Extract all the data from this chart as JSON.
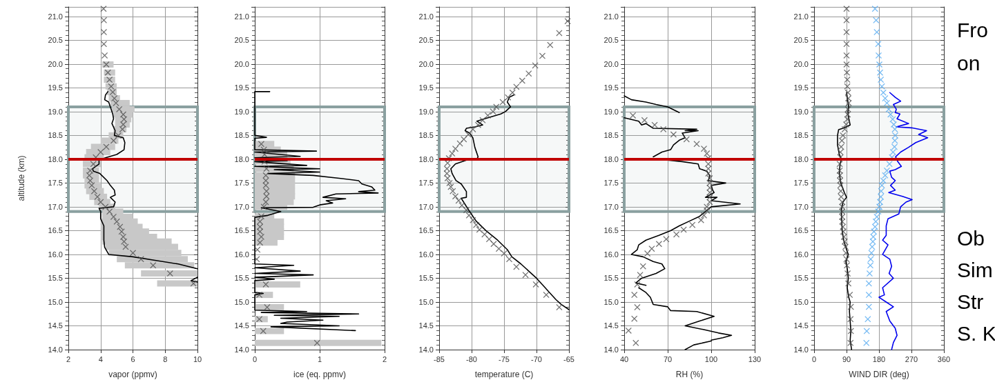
{
  "chart_data": [
    {
      "type": "line",
      "xlabel": "vapor (ppmv)",
      "ylabel": "altitude (km)",
      "xlim": [
        2,
        10
      ],
      "xticks": [
        2,
        4,
        6,
        8,
        10
      ],
      "ylim": [
        14,
        21.2
      ],
      "yticks": [
        {
          "value": 14,
          "label": "14.0"
        },
        {
          "value": 14.5,
          "label": "14.5"
        },
        {
          "value": 15,
          "label": "15.0"
        },
        {
          "value": 15.5,
          "label": "15.5"
        },
        {
          "value": 16,
          "label": "16.0"
        },
        {
          "value": 16.5,
          "label": "16.5"
        },
        {
          "value": 17,
          "label": "17.0"
        },
        {
          "value": 17.5,
          "label": "17.5"
        },
        {
          "value": 18,
          "label": "18.0"
        },
        {
          "value": 18.5,
          "label": "18.5"
        },
        {
          "value": 19,
          "label": "19.0"
        },
        {
          "value": 19.5,
          "label": "19.5"
        },
        {
          "value": 20,
          "label": "20.0"
        },
        {
          "value": 20.5,
          "label": "20.5"
        },
        {
          "value": 21,
          "label": "21.0"
        }
      ],
      "grid": true,
      "bands": [
        {
          "axis": "y",
          "from": 16.9,
          "to": 19.1,
          "color": "#8aa0a0"
        }
      ],
      "ref_lines": [
        {
          "axis": "y",
          "value": 18,
          "color": "#c00000"
        }
      ],
      "series": [
        {
          "type": "scatter",
          "marker": "cross",
          "color": "#505050",
          "x": [
            4.18,
            4.2,
            4.2,
            4.2,
            4.25,
            4.35,
            4.45,
            4.55,
            4.65,
            4.75,
            4.85,
            4.95,
            5.15,
            5.4,
            5.45,
            5.4,
            5.35,
            5.1,
            4.8,
            4.35,
            4.0,
            3.7,
            3.55,
            3.35,
            3.3,
            3.35,
            3.45,
            3.6,
            3.8,
            4.0,
            4.3,
            4.55,
            4.8,
            5.0,
            5.2,
            5.3,
            5.4,
            5.45,
            5.55,
            6.0,
            6.5,
            7.25,
            8.3,
            9.75
          ],
          "values": [
            21.16,
            20.92,
            20.67,
            20.42,
            20.18,
            19.99,
            19.82,
            19.67,
            19.53,
            19.41,
            19.28,
            19.18,
            19.05,
            18.94,
            18.84,
            18.73,
            18.63,
            18.5,
            18.39,
            18.26,
            18.15,
            18.04,
            17.9,
            17.76,
            17.66,
            17.55,
            17.45,
            17.33,
            17.21,
            17.1,
            17.0,
            16.9,
            16.79,
            16.69,
            16.58,
            16.48,
            16.37,
            16.27,
            16.16,
            16.03,
            15.9,
            15.77,
            15.6,
            15.39
          ],
          "xerrors": [
            null,
            null,
            null,
            null,
            null,
            [
              4.1,
              4.8
            ],
            [
              4.2,
              4.9
            ],
            [
              4.2,
              4.9
            ],
            [
              4.3,
              5.0
            ],
            [
              4.4,
              5.0
            ],
            [
              4.5,
              5.2
            ],
            [
              4.6,
              5.8
            ],
            [
              4.7,
              6.1
            ],
            [
              4.8,
              6.0
            ],
            [
              4.9,
              5.9
            ],
            [
              4.9,
              5.8
            ],
            [
              4.8,
              5.6
            ],
            [
              4.5,
              5.4
            ],
            [
              4.0,
              5.1
            ],
            [
              3.4,
              4.9
            ],
            [
              3.1,
              4.6
            ],
            [
              3.0,
              4.2
            ],
            [
              2.9,
              4.0
            ],
            [
              2.9,
              3.9
            ],
            [
              2.9,
              3.9
            ],
            [
              3.0,
              3.9
            ],
            [
              3.0,
              4.0
            ],
            [
              3.1,
              4.2
            ],
            [
              3.3,
              4.4
            ],
            [
              3.6,
              4.6
            ],
            [
              3.9,
              4.9
            ],
            [
              4.1,
              5.4
            ],
            [
              4.1,
              6.0
            ],
            [
              4.0,
              6.3
            ],
            [
              4.0,
              6.6
            ],
            [
              4.0,
              7.0
            ],
            [
              4.0,
              7.5
            ],
            [
              4.1,
              8.4
            ],
            [
              4.3,
              8.8
            ],
            [
              4.5,
              9.0
            ],
            [
              5.0,
              9.4
            ],
            [
              5.5,
              9.8
            ],
            [
              6.5,
              10
            ],
            [
              7.5,
              10
            ]
          ]
        },
        {
          "color": "#000000",
          "x": [
            4.45,
            4.3,
            4.25,
            4.5,
            4.6,
            4.75,
            4.8,
            4.7,
            4.9,
            4.85,
            5.4,
            5.5,
            5.45,
            5.0,
            4.3,
            3.9,
            3.9,
            3.5,
            3.55,
            3.95,
            4.4,
            4.6,
            4.85,
            4.9,
            4.6,
            4.9,
            4.8,
            3.9,
            4.0,
            4.0,
            4.2,
            4.2,
            4.2,
            4.25,
            4.5,
            6.0,
            7.5,
            8.8,
            10.0,
            null,
            10,
            9.6,
            10
          ],
          "values": [
            19.42,
            19.35,
            19.25,
            19.2,
            19.1,
            18.95,
            18.85,
            18.75,
            18.6,
            18.5,
            18.45,
            18.35,
            18.2,
            18.1,
            18.03,
            17.98,
            17.9,
            17.8,
            17.75,
            17.7,
            17.55,
            17.45,
            17.35,
            17.25,
            17.2,
            17.1,
            17.0,
            16.97,
            16.9,
            16.75,
            16.6,
            16.45,
            16.3,
            16.15,
            16.0,
            15.95,
            15.87,
            15.8,
            15.7,
            null,
            15.52,
            15.45,
            15.42
          ]
        }
      ]
    },
    {
      "type": "line",
      "xlabel": "ice (eq. ppmv)",
      "xlim": [
        0,
        2
      ],
      "xticks": [
        0,
        1,
        2
      ],
      "ylim": [
        14,
        21.2
      ],
      "yticks": [
        {
          "value": 14,
          "label": "14.0"
        },
        {
          "value": 14.5,
          "label": "14.5"
        },
        {
          "value": 15,
          "label": "15.0"
        },
        {
          "value": 15.5,
          "label": "15.5"
        },
        {
          "value": 16,
          "label": "16.0"
        },
        {
          "value": 16.5,
          "label": "16.5"
        },
        {
          "value": 17,
          "label": "17.0"
        },
        {
          "value": 17.5,
          "label": "17.5"
        },
        {
          "value": 18,
          "label": "18.0"
        },
        {
          "value": 18.5,
          "label": "18.5"
        },
        {
          "value": 19,
          "label": "19.0"
        },
        {
          "value": 19.5,
          "label": "19.5"
        },
        {
          "value": 20,
          "label": "20.0"
        },
        {
          "value": 20.5,
          "label": "20.5"
        },
        {
          "value": 21,
          "label": "21.0"
        }
      ],
      "grid": true,
      "bands": [
        {
          "axis": "y",
          "from": 16.9,
          "to": 19.1,
          "color": "#8aa0a0"
        }
      ],
      "ref_lines": [
        {
          "axis": "y",
          "value": 18,
          "color": "#c00000"
        }
      ],
      "series": [
        {
          "type": "scatter",
          "marker": "cross",
          "color": "#505050",
          "x": [
            0.1,
            0.14,
            0.15,
            0.15,
            0.18,
            0.17,
            0.17,
            0.17,
            0.18,
            0.18,
            0.17,
            0.14,
            0.1,
            0.08,
            0.08,
            0.08,
            0.1,
            0.08,
            0.04,
            0.03,
            0.17,
            0.07,
            0.19,
            0.07,
            0.13,
            0.96
          ],
          "values": [
            18.32,
            18.2,
            18.1,
            17.95,
            17.8,
            17.66,
            17.55,
            17.45,
            17.33,
            17.22,
            17.1,
            17.0,
            16.8,
            16.69,
            16.58,
            16.48,
            16.37,
            16.25,
            16.1,
            15.9,
            15.37,
            15.15,
            14.89,
            14.64,
            14.39,
            14.14
          ],
          "xerrors": [
            [
              0,
              0.3
            ],
            [
              0,
              0.4
            ],
            [
              0,
              0.5
            ],
            [
              0,
              0.55
            ],
            [
              0,
              0.6
            ],
            [
              0,
              0.62
            ],
            [
              0,
              0.62
            ],
            [
              0,
              0.62
            ],
            [
              0,
              0.62
            ],
            [
              0,
              0.62
            ],
            [
              0,
              0.6
            ],
            [
              0,
              0.5
            ],
            [
              0,
              0.3
            ],
            [
              0,
              0.45
            ],
            [
              0,
              0.45
            ],
            [
              0,
              0.45
            ],
            [
              0,
              0.45
            ],
            [
              0,
              0.35
            ],
            null,
            null,
            [
              0,
              0.7
            ],
            [
              0,
              0.28
            ],
            [
              0,
              0.45
            ],
            [
              0,
              0.2
            ],
            [
              0,
              0.45
            ],
            [
              0,
              1.95
            ]
          ]
        },
        {
          "color": "#000000",
          "x": [
            0.23,
            0,
            0,
            0.18,
            0,
            0,
            0.95,
            0,
            0.7,
            0,
            0.5,
            0,
            0.8,
            0,
            1.0,
            0.3,
            1.0,
            0.2,
            0.9,
            1.3,
            1.6,
            1.65,
            1.8,
            1.85,
            1.6,
            1.9,
            1.25,
            1.05,
            1.4,
            1.1,
            1.2,
            1.0,
            0.9,
            0.1,
            0.4,
            0.2,
            0,
            0,
            0.6,
            0,
            0.7,
            0,
            0.9,
            0,
            0.3,
            0,
            0,
            0.13,
            0,
            0,
            0.8,
            0.1,
            1.6,
            0.3,
            1.3,
            0.4,
            1.05,
            0.5,
            0.4,
            1.3,
            0.25,
            1.55
          ],
          "values": [
            19.42,
            19.42,
            18.5,
            18.46,
            18.44,
            18.2,
            18.17,
            18.15,
            18.06,
            18.03,
            17.97,
            17.95,
            17.87,
            17.85,
            17.8,
            17.78,
            17.73,
            17.7,
            17.66,
            17.6,
            17.55,
            17.48,
            17.42,
            17.35,
            17.32,
            17.29,
            17.27,
            17.2,
            17.17,
            17.13,
            17.08,
            17.04,
            16.99,
            16.98,
            16.9,
            16.82,
            16.78,
            15.8,
            15.77,
            15.72,
            15.65,
            15.6,
            15.57,
            15.52,
            15.48,
            15.45,
            15.2,
            15.18,
            15.15,
            14.83,
            14.8,
            14.78,
            14.75,
            14.72,
            14.7,
            14.66,
            14.62,
            14.58,
            14.55,
            14.5,
            14.48,
            14.4
          ]
        }
      ]
    },
    {
      "type": "line",
      "xlabel": "temperature (C)",
      "xlim": [
        -85,
        -65
      ],
      "xticks": [
        -85,
        -80,
        -75,
        -70,
        -65
      ],
      "ylim": [
        14,
        21.2
      ],
      "yticks": [
        {
          "value": 14,
          "label": "14.0"
        },
        {
          "value": 14.5,
          "label": "14.5"
        },
        {
          "value": 15,
          "label": "15.0"
        },
        {
          "value": 15.5,
          "label": "15.5"
        },
        {
          "value": 16,
          "label": "16.0"
        },
        {
          "value": 16.5,
          "label": "16.5"
        },
        {
          "value": 17,
          "label": "17.0"
        },
        {
          "value": 17.5,
          "label": "17.5"
        },
        {
          "value": 18,
          "label": "18.0"
        },
        {
          "value": 18.5,
          "label": "18.5"
        },
        {
          "value": 19,
          "label": "19.0"
        },
        {
          "value": 19.5,
          "label": "19.5"
        },
        {
          "value": 20,
          "label": "20.0"
        },
        {
          "value": 20.5,
          "label": "20.5"
        },
        {
          "value": 21,
          "label": "21.0"
        }
      ],
      "grid": true,
      "bands": [
        {
          "axis": "y",
          "from": 16.9,
          "to": 19.1,
          "color": "#8aa0a0"
        }
      ],
      "ref_lines": [
        {
          "axis": "y",
          "value": 18,
          "color": "#c00000"
        }
      ],
      "series": [
        {
          "type": "scatter",
          "marker": "cross",
          "color": "#505050",
          "x": [
            -65.2,
            -66.5,
            -67.9,
            -69.1,
            -70.2,
            -71.2,
            -72.2,
            -73.1,
            -73.7,
            -74.4,
            -75.2,
            -76.2,
            -76.7,
            -77.5,
            -78.3,
            -79.0,
            -79.8,
            -80.5,
            -81.2,
            -81.8,
            -82.5,
            -83.0,
            -83.5,
            -83.7,
            -83.8,
            -83.8,
            -83.7,
            -83.4,
            -83.2,
            -82.9,
            -82.5,
            -82.0,
            -81.5,
            -80.8,
            -80.4,
            -79.8,
            -79.3,
            -78.8,
            -78.0,
            -77.3,
            -76.6,
            -75.8,
            -75.0,
            -74.2,
            -73.1,
            -71.7,
            -70.1,
            -68.5,
            -66.5
          ],
          "values": [
            20.9,
            20.65,
            20.4,
            20.17,
            19.97,
            19.8,
            19.65,
            19.52,
            19.4,
            19.3,
            19.2,
            19.1,
            19.0,
            18.92,
            18.82,
            18.72,
            18.63,
            18.52,
            18.42,
            18.33,
            18.22,
            18.12,
            18.02,
            17.92,
            17.8,
            17.7,
            17.6,
            17.5,
            17.42,
            17.33,
            17.22,
            17.13,
            17.03,
            16.93,
            16.82,
            16.72,
            16.62,
            16.52,
            16.42,
            16.32,
            16.22,
            16.12,
            16.02,
            15.9,
            15.74,
            15.57,
            15.37,
            15.15,
            14.89
          ]
        },
        {
          "color": "#000000",
          "x": [
            -73.5,
            -74.2,
            -74.5,
            -74.0,
            -74.8,
            -75.5,
            -78,
            -79.2,
            -78.3,
            -79.5,
            -80.8,
            -81,
            -80.3,
            -79.8,
            -79.5,
            -79.0,
            -79.2,
            -80.8,
            -82.5,
            -83.2,
            -83.0,
            -82.4,
            -81.6,
            -81.2,
            -80.8,
            -80.8,
            -81.6,
            -81.0,
            -80.3,
            -79.3,
            -77.8,
            -76.0,
            -74.5,
            -73.8,
            -72.4,
            -71.2,
            -70.0,
            -69.0,
            -68.0,
            -67.0,
            -66.2,
            -65.0
          ],
          "values": [
            19.35,
            19.3,
            19.2,
            19.1,
            19.0,
            18.95,
            18.85,
            18.8,
            18.72,
            18.68,
            18.65,
            18.6,
            18.55,
            18.45,
            18.25,
            18.05,
            18.0,
            17.98,
            17.9,
            17.8,
            17.7,
            17.55,
            17.48,
            17.4,
            17.32,
            17.2,
            17.18,
            17.05,
            16.9,
            16.7,
            16.5,
            16.3,
            16.1,
            15.95,
            15.8,
            15.65,
            15.5,
            15.35,
            15.2,
            15.05,
            14.95,
            14.84
          ]
        }
      ]
    },
    {
      "type": "line",
      "xlabel": "RH (%)",
      "xlim": [
        40,
        130
      ],
      "xticks": [
        40,
        70,
        100,
        130
      ],
      "ylim": [
        14,
        21.2
      ],
      "yticks": [
        {
          "value": 14,
          "label": "14.0"
        },
        {
          "value": 14.5,
          "label": "14.5"
        },
        {
          "value": 15,
          "label": "15.0"
        },
        {
          "value": 15.5,
          "label": "15.5"
        },
        {
          "value": 16,
          "label": "16.0"
        },
        {
          "value": 16.5,
          "label": "16.5"
        },
        {
          "value": 17,
          "label": "17.0"
        },
        {
          "value": 17.5,
          "label": "17.5"
        },
        {
          "value": 18,
          "label": "18.0"
        },
        {
          "value": 18.5,
          "label": "18.5"
        },
        {
          "value": 19,
          "label": "19.0"
        },
        {
          "value": 19.5,
          "label": "19.5"
        },
        {
          "value": 20,
          "label": "20.0"
        },
        {
          "value": 20.5,
          "label": "20.5"
        },
        {
          "value": 21,
          "label": "21.0"
        }
      ],
      "grid": true,
      "bands": [
        {
          "axis": "y",
          "from": 16.9,
          "to": 19.1,
          "color": "#8aa0a0"
        }
      ],
      "ref_lines": [
        {
          "axis": "y",
          "value": 18,
          "color": "#c00000"
        }
      ],
      "series": [
        {
          "type": "scatter",
          "marker": "cross",
          "color": "#505050",
          "x": [
            46,
            54,
            61,
            67,
            74,
            83,
            90,
            95,
            97,
            98,
            98,
            98,
            98,
            99,
            99,
            99,
            99,
            99,
            99,
            97,
            97,
            95,
            93,
            87,
            81,
            76,
            69,
            64,
            59,
            56,
            53,
            51,
            49,
            47,
            49,
            47,
            43,
            48
          ],
          "values": [
            18.92,
            18.82,
            18.72,
            18.63,
            18.52,
            18.42,
            18.32,
            18.22,
            18.12,
            18.02,
            17.9,
            17.8,
            17.7,
            17.6,
            17.5,
            17.4,
            17.3,
            17.2,
            17.1,
            17.0,
            16.92,
            16.82,
            16.72,
            16.62,
            16.52,
            16.42,
            16.32,
            16.22,
            16.12,
            16.02,
            15.75,
            15.57,
            15.37,
            15.15,
            14.89,
            14.65,
            14.4,
            14.14
          ]
        },
        {
          "color": "#000000",
          "x": [
            40,
            45,
            55,
            62,
            70,
            78,
            null,
            40,
            50,
            52,
            55,
            60,
            90,
            82,
            91,
            80,
            82,
            78,
            74,
            72,
            66,
            60,
            null,
            70,
            80,
            91,
            92,
            97,
            99,
            98,
            110,
            100,
            101,
            102,
            96,
            104,
            100,
            120,
            100,
            96,
            92,
            85,
            78,
            72,
            64,
            55,
            50,
            49,
            45,
            53,
            60,
            66,
            68,
            62,
            52,
            48,
            55,
            null,
            50,
            55,
            58,
            60,
            70,
            72,
            90,
            102,
            92,
            82,
            95,
            105,
            114,
            108,
            100,
            null,
            100,
            88,
            82
          ],
          "values": [
            19.33,
            19.25,
            19.2,
            19.15,
            19.1,
            18.98,
            null,
            18.87,
            18.8,
            18.72,
            18.75,
            18.65,
            18.63,
            18.6,
            18.6,
            18.55,
            18.45,
            18.4,
            18.3,
            18.2,
            18.15,
            18.05,
            null,
            17.98,
            17.95,
            17.9,
            17.8,
            17.75,
            17.65,
            17.55,
            17.5,
            17.45,
            17.35,
            17.3,
            17.2,
            17.2,
            17.13,
            17.06,
            17.0,
            16.9,
            16.8,
            16.7,
            16.6,
            16.5,
            16.4,
            16.3,
            16.2,
            16.1,
            16.0,
            15.95,
            15.85,
            15.8,
            15.7,
            15.6,
            15.5,
            15.4,
            15.35,
            null,
            15.3,
            15.2,
            15.1,
            14.95,
            14.9,
            14.82,
            14.8,
            14.7,
            14.6,
            14.5,
            14.42,
            14.35,
            14.3,
            14.25,
            14.2,
            null,
            14.18,
            14.1,
            14.0
          ]
        }
      ]
    },
    {
      "type": "line",
      "xlabel": "WIND DIR (deg)",
      "xlim": [
        0,
        360
      ],
      "xticks": [
        0,
        90,
        180,
        270,
        360
      ],
      "ylim": [
        14,
        21.2
      ],
      "yticks": [
        {
          "value": 14,
          "label": "14.0"
        },
        {
          "value": 14.5,
          "label": "14.5"
        },
        {
          "value": 15,
          "label": "15.0"
        },
        {
          "value": 15.5,
          "label": "15.5"
        },
        {
          "value": 16,
          "label": "16.0"
        },
        {
          "value": 16.5,
          "label": "16.5"
        },
        {
          "value": 17,
          "label": "17.0"
        },
        {
          "value": 17.5,
          "label": "17.5"
        },
        {
          "value": 18,
          "label": "18.0"
        },
        {
          "value": 18.5,
          "label": "18.5"
        },
        {
          "value": 19,
          "label": "19.0"
        },
        {
          "value": 19.5,
          "label": "19.5"
        },
        {
          "value": 20,
          "label": "20.0"
        },
        {
          "value": 20.5,
          "label": "20.5"
        },
        {
          "value": 21,
          "label": "21.0"
        }
      ],
      "grid": true,
      "bands": [
        {
          "axis": "y",
          "from": 16.9,
          "to": 19.1,
          "color": "#8aa0a0"
        }
      ],
      "ref_lines": [
        {
          "axis": "y",
          "value": 18,
          "color": "#c00000"
        }
      ],
      "annotations": [
        "Fro",
        "on",
        "Ob",
        "Sim",
        "Str",
        "S. K"
      ],
      "series": [
        {
          "type": "scatter",
          "marker": "cross",
          "color": "#505050",
          "x": [
            90,
            90,
            90,
            90,
            90,
            90,
            91,
            92,
            92,
            94,
            95,
            96,
            94,
            93,
            92,
            89,
            85,
            80,
            77,
            75,
            73,
            73,
            71,
            71,
            72,
            72,
            73,
            74,
            75,
            78,
            78,
            78,
            78,
            78,
            80,
            81,
            83,
            85,
            87,
            88,
            90,
            91,
            93,
            95,
            99,
            102,
            101,
            102,
            101
          ],
          "values": [
            21.16,
            20.92,
            20.67,
            20.42,
            20.18,
            19.99,
            19.82,
            19.67,
            19.53,
            19.4,
            19.28,
            19.18,
            19.05,
            18.94,
            18.84,
            18.73,
            18.63,
            18.5,
            18.39,
            18.26,
            18.15,
            18.04,
            17.9,
            17.76,
            17.66,
            17.55,
            17.45,
            17.33,
            17.21,
            17.1,
            17.0,
            16.9,
            16.79,
            16.69,
            16.58,
            16.48,
            16.37,
            16.27,
            16.16,
            16.03,
            15.9,
            15.77,
            15.6,
            15.39,
            15.15,
            14.9,
            14.64,
            14.39,
            14.14
          ]
        },
        {
          "color": "#000000",
          "x": [
            90,
            92,
            96,
            94,
            95,
            100,
            80,
            68,
            65,
            65,
            70,
            76,
            72,
            70,
            74,
            84,
            90,
            80,
            76,
            76,
            78,
            82,
            90,
            95,
            88,
            92,
            95,
            92,
            96,
            100,
            98,
            100,
            102,
            100,
            104
          ],
          "values": [
            19.4,
            19.3,
            19.1,
            19.0,
            18.9,
            18.72,
            18.65,
            18.62,
            18.5,
            18.3,
            18.1,
            18.0,
            17.9,
            17.7,
            17.5,
            17.3,
            17.2,
            17.1,
            16.95,
            16.8,
            16.5,
            16.3,
            16.1,
            16.0,
            15.85,
            15.7,
            15.5,
            15.3,
            15.1,
            15.0,
            14.8,
            14.6,
            14.4,
            14.2,
            14.0
          ]
        },
        {
          "type": "scatter",
          "marker": "cross",
          "color": "#55aaf0",
          "x": [
            169,
            172,
            174,
            178,
            179,
            181,
            183,
            185,
            188,
            192,
            197,
            202,
            207,
            212,
            218,
            221,
            224,
            225,
            224,
            223,
            219,
            216,
            209,
            202,
            197,
            192,
            188,
            186,
            185,
            183,
            181,
            178,
            174,
            171,
            169,
            166,
            164,
            163,
            161,
            159,
            157,
            156,
            154,
            152,
            152,
            152,
            149,
            146,
            145
          ],
          "values": [
            21.16,
            20.92,
            20.67,
            20.42,
            20.18,
            19.99,
            19.82,
            19.67,
            19.53,
            19.4,
            19.28,
            19.18,
            19.05,
            18.94,
            18.84,
            18.73,
            18.63,
            18.5,
            18.39,
            18.26,
            18.15,
            18.04,
            17.9,
            17.76,
            17.66,
            17.55,
            17.45,
            17.33,
            17.21,
            17.1,
            17.0,
            16.9,
            16.79,
            16.69,
            16.58,
            16.48,
            16.37,
            16.27,
            16.16,
            16.03,
            15.9,
            15.77,
            15.6,
            15.39,
            15.15,
            14.9,
            14.64,
            14.39,
            14.14
          ]
        },
        {
          "color": "#0000ee",
          "x": [
            210,
            225,
            240,
            220,
            228,
            225,
            238,
            230,
            262,
            228,
            270,
            312,
            290,
            315,
            282,
            262,
            240,
            226,
            232,
            242,
            225,
            210,
            215,
            225,
            212,
            225,
            207,
            245,
            272,
            255,
            240,
            235,
            205,
            200,
            200,
            190,
            205,
            190,
            210,
            215,
            208,
            220,
            190,
            195,
            180,
            200,
            220,
            200,
            210,
            225,
            230,
            220,
            215
          ],
          "values": [
            19.4,
            19.3,
            19.22,
            19.15,
            19.05,
            18.98,
            18.95,
            18.85,
            18.75,
            18.68,
            18.66,
            18.6,
            18.52,
            18.45,
            18.35,
            18.25,
            18.15,
            18.05,
            17.95,
            17.85,
            17.78,
            17.75,
            17.62,
            17.55,
            17.45,
            17.35,
            17.3,
            17.22,
            17.15,
            17.1,
            17.0,
            16.85,
            16.75,
            16.6,
            16.4,
            16.3,
            16.2,
            16.0,
            15.9,
            15.75,
            15.6,
            15.5,
            15.3,
            15.15,
            15.1,
            15.0,
            14.9,
            14.8,
            14.6,
            14.45,
            14.3,
            14.15,
            14.0
          ]
        }
      ]
    }
  ]
}
